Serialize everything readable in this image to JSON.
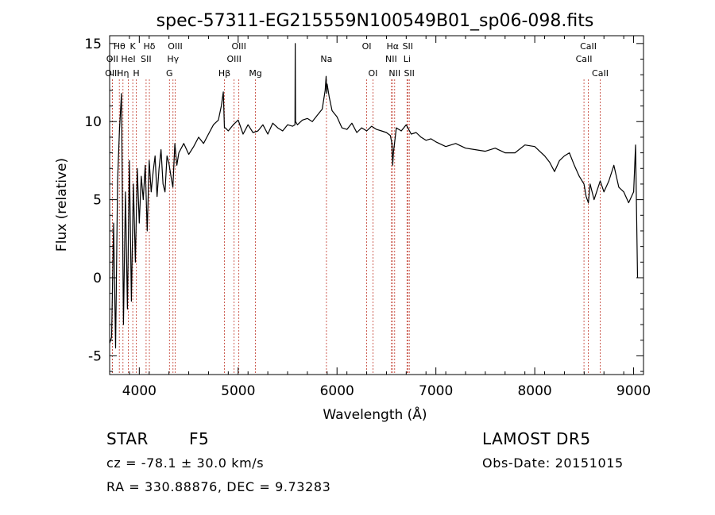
{
  "chart_data": {
    "type": "line",
    "title": "spec-57311-EG215559N100549B01_sp06-098.fits",
    "xlabel": "Wavelength (Å)",
    "ylabel": "Flux (relative)",
    "xlim": [
      3700,
      9100
    ],
    "ylim": [
      -6.2,
      15.5
    ],
    "xticks": [
      4000,
      5000,
      6000,
      7000,
      8000,
      9000
    ],
    "yticks": [
      -5,
      0,
      5,
      10,
      15
    ],
    "grid": false,
    "series": [
      {
        "color": "#000000",
        "x": [
          3700,
          3720,
          3740,
          3760,
          3780,
          3800,
          3820,
          3840,
          3860,
          3880,
          3900,
          3920,
          3940,
          3960,
          3980,
          4000,
          4020,
          4040,
          4060,
          4080,
          4100,
          4120,
          4140,
          4160,
          4180,
          4200,
          4220,
          4240,
          4260,
          4280,
          4300,
          4320,
          4340,
          4360,
          4380,
          4400,
          4450,
          4500,
          4550,
          4600,
          4650,
          4700,
          4750,
          4800,
          4830,
          4850,
          4861,
          4870,
          4900,
          4950,
          5000,
          5050,
          5100,
          5150,
          5200,
          5250,
          5300,
          5350,
          5400,
          5450,
          5500,
          5550,
          5575,
          5577,
          5580,
          5600,
          5650,
          5700,
          5750,
          5800,
          5850,
          5880,
          5890,
          5895,
          5900,
          5920,
          5950,
          6000,
          6050,
          6100,
          6150,
          6200,
          6250,
          6300,
          6350,
          6400,
          6450,
          6500,
          6540,
          6555,
          6563,
          6570,
          6600,
          6650,
          6700,
          6750,
          6800,
          6850,
          6900,
          6950,
          7000,
          7100,
          7200,
          7300,
          7400,
          7500,
          7600,
          7700,
          7800,
          7900,
          8000,
          8050,
          8100,
          8150,
          8200,
          8250,
          8300,
          8350,
          8400,
          8450,
          8498,
          8520,
          8542,
          8560,
          8600,
          8662,
          8700,
          8750,
          8800,
          8850,
          8900,
          8950,
          9000,
          9020,
          9040
        ],
        "y": [
          -4.2,
          -3.8,
          3.5,
          -4.5,
          6.2,
          9.5,
          11.8,
          -3.0,
          5.5,
          -2.0,
          7.5,
          -1.5,
          6.0,
          1.0,
          7.0,
          3.5,
          6.5,
          5.0,
          7.2,
          3.0,
          7.5,
          5.5,
          6.8,
          7.8,
          5.2,
          7.0,
          8.2,
          6.0,
          5.5,
          7.8,
          7.3,
          6.5,
          5.8,
          8.6,
          7.2,
          8.0,
          8.6,
          7.9,
          8.4,
          9.0,
          8.6,
          9.2,
          9.8,
          10.1,
          11.0,
          11.9,
          9.6,
          9.6,
          9.4,
          9.8,
          10.1,
          9.2,
          9.8,
          9.3,
          9.4,
          9.8,
          9.2,
          9.9,
          9.6,
          9.4,
          9.8,
          9.7,
          9.8,
          15.0,
          10.0,
          9.8,
          10.1,
          10.2,
          10.0,
          10.4,
          10.8,
          12.0,
          12.9,
          11.8,
          12.4,
          11.6,
          10.7,
          10.3,
          9.6,
          9.5,
          9.9,
          9.3,
          9.6,
          9.4,
          9.7,
          9.5,
          9.4,
          9.3,
          9.1,
          8.6,
          7.2,
          8.0,
          9.6,
          9.4,
          9.8,
          9.2,
          9.3,
          9.0,
          8.8,
          8.9,
          8.7,
          8.4,
          8.6,
          8.3,
          8.2,
          8.1,
          8.3,
          8.0,
          8.0,
          8.5,
          8.4,
          8.1,
          7.8,
          7.4,
          6.8,
          7.5,
          7.8,
          8.0,
          7.2,
          6.5,
          6.0,
          5.2,
          4.8,
          6.0,
          5.0,
          6.2,
          5.5,
          6.2,
          7.2,
          5.8,
          5.5,
          4.8,
          5.5,
          8.5,
          0.0
        ]
      }
    ],
    "lines": [
      {
        "label": "Hθ",
        "x": 3798,
        "row": 1
      },
      {
        "label": "OII",
        "x": 3727,
        "row": 2
      },
      {
        "label": "OIII",
        "x": 3727,
        "row": 3
      },
      {
        "label": "Hη",
        "x": 3835,
        "row": 3
      },
      {
        "label": "K",
        "x": 3934,
        "row": 1
      },
      {
        "label": "HeI",
        "x": 3889,
        "row": 2
      },
      {
        "label": "H",
        "x": 3969,
        "row": 3
      },
      {
        "label": "Hδ",
        "x": 4102,
        "row": 1
      },
      {
        "label": "SII",
        "x": 4069,
        "row": 2
      },
      {
        "label": "OIII",
        "x": 4363,
        "row": 1
      },
      {
        "label": "Hγ",
        "x": 4341,
        "row": 2
      },
      {
        "label": "G",
        "x": 4305,
        "row": 3
      },
      {
        "label": "OIII",
        "x": 5007,
        "row": 1
      },
      {
        "label": "OIII",
        "x": 4959,
        "row": 2
      },
      {
        "label": "Hβ",
        "x": 4861,
        "row": 3
      },
      {
        "label": "Mg",
        "x": 5175,
        "row": 3
      },
      {
        "label": "Na",
        "x": 5893,
        "row": 2
      },
      {
        "label": "OI",
        "x": 6300,
        "row": 1
      },
      {
        "label": "OI",
        "x": 6363,
        "row": 3
      },
      {
        "label": "Hα",
        "x": 6563,
        "row": 1
      },
      {
        "label": "NII",
        "x": 6548,
        "row": 2
      },
      {
        "label": "NII",
        "x": 6583,
        "row": 3
      },
      {
        "label": "SII",
        "x": 6716,
        "row": 1
      },
      {
        "label": "Li",
        "x": 6708,
        "row": 2
      },
      {
        "label": "SII",
        "x": 6731,
        "row": 3
      },
      {
        "label": "CaII",
        "x": 8542,
        "row": 1
      },
      {
        "label": "CaII",
        "x": 8498,
        "row": 2
      },
      {
        "label": "CaII",
        "x": 8662,
        "row": 3
      }
    ]
  },
  "info": {
    "object_class": "STAR",
    "subclass": "F5",
    "survey": "LAMOST DR5",
    "cz": "cz = -78.1 ± 30.0 km/s",
    "obs_date": "Obs-Date: 20151015",
    "coords": "RA = 330.88876, DEC =   9.73283"
  }
}
